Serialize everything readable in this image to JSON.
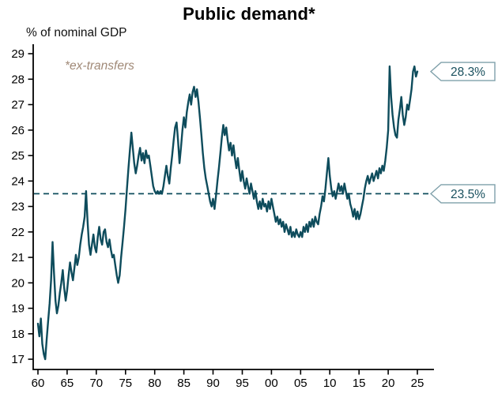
{
  "chart_data": {
    "type": "line",
    "title": "Public demand*",
    "ylabel": "% of nominal GDP",
    "annotation": "*ex-transfers",
    "line_color": "#0e4c5c",
    "annotation_color": "#a08977",
    "callout_border": "#7fa0aa",
    "callout_text": "#19505e",
    "axis_color": "#000000",
    "xlim": [
      1960,
      2025
    ],
    "ylim": [
      17,
      29
    ],
    "grid": false,
    "x_start": 1960,
    "x_step": 0.25,
    "x_ticks": [
      1960,
      1965,
      1970,
      1975,
      1980,
      1985,
      1990,
      1995,
      2000,
      2005,
      2010,
      2015,
      2020,
      2025
    ],
    "x_tick_labels": [
      "60",
      "65",
      "70",
      "75",
      "80",
      "85",
      "90",
      "95",
      "00",
      "05",
      "10",
      "15",
      "20",
      "25"
    ],
    "y_ticks": [
      17,
      18,
      19,
      20,
      21,
      22,
      23,
      24,
      25,
      26,
      27,
      28,
      29
    ],
    "dashed_line": {
      "value": 23.5,
      "label": "23.5%"
    },
    "end_label": {
      "value": 28.3,
      "label": "28.3%"
    },
    "values": [
      18.4,
      17.9,
      18.6,
      17.6,
      17.2,
      17.0,
      17.8,
      18.5,
      19.2,
      20.1,
      21.6,
      20.4,
      19.3,
      18.8,
      19.1,
      19.6,
      20.0,
      20.5,
      19.8,
      19.3,
      19.7,
      20.3,
      20.8,
      20.4,
      20.1,
      20.6,
      21.1,
      20.7,
      21.0,
      21.5,
      21.9,
      22.2,
      22.6,
      23.6,
      22.4,
      21.5,
      21.1,
      21.5,
      21.9,
      21.4,
      21.2,
      21.8,
      22.2,
      21.7,
      21.5,
      22.0,
      22.1,
      21.6,
      21.4,
      21.7,
      21.3,
      21.0,
      21.1,
      20.7,
      20.3,
      20.0,
      20.3,
      21.0,
      21.6,
      22.2,
      22.9,
      23.7,
      24.5,
      25.2,
      25.9,
      25.3,
      24.7,
      24.3,
      24.6,
      25.0,
      25.3,
      24.8,
      25.1,
      24.7,
      25.2,
      24.9,
      25.0,
      24.6,
      24.2,
      23.8,
      23.6,
      23.5,
      23.6,
      23.5,
      23.6,
      23.5,
      23.8,
      24.2,
      24.6,
      24.2,
      23.9,
      24.5,
      25.0,
      25.6,
      26.1,
      26.3,
      25.6,
      24.7,
      25.3,
      26.0,
      26.5,
      26.1,
      26.7,
      27.1,
      27.4,
      27.0,
      27.5,
      27.7,
      27.3,
      27.6,
      27.1,
      26.5,
      25.8,
      25.1,
      24.5,
      24.1,
      23.8,
      23.5,
      23.2,
      23.0,
      23.3,
      22.9,
      23.4,
      24.0,
      24.5,
      25.1,
      25.7,
      26.2,
      25.8,
      26.1,
      25.6,
      25.2,
      25.5,
      25.0,
      25.4,
      24.9,
      24.5,
      24.9,
      24.4,
      24.0,
      24.4,
      24.0,
      23.7,
      24.1,
      23.8,
      23.5,
      23.9,
      23.6,
      23.3,
      23.6,
      23.2,
      22.9,
      23.2,
      22.9,
      23.3,
      23.0,
      23.1,
      22.8,
      23.2,
      22.9,
      23.3,
      23.0,
      22.7,
      22.4,
      22.6,
      22.3,
      22.5,
      22.2,
      22.4,
      22.0,
      22.3,
      22.1,
      21.9,
      22.2,
      21.8,
      22.0,
      21.8,
      22.1,
      21.9,
      21.8,
      22.0,
      21.8,
      22.2,
      22.0,
      22.3,
      22.0,
      22.4,
      22.2,
      22.5,
      22.2,
      22.6,
      22.4,
      22.3,
      22.7,
      23.0,
      23.4,
      23.2,
      23.7,
      24.3,
      24.9,
      24.2,
      23.7,
      23.4,
      23.6,
      23.3,
      23.6,
      23.9,
      23.6,
      23.8,
      23.5,
      23.9,
      23.6,
      23.3,
      23.5,
      23.1,
      22.9,
      22.6,
      22.9,
      22.5,
      22.8,
      22.5,
      22.7,
      23.0,
      23.3,
      23.7,
      24.0,
      24.2,
      23.9,
      24.1,
      24.3,
      24.0,
      24.2,
      24.4,
      24.1,
      24.5,
      24.3,
      24.6,
      24.4,
      24.8,
      25.3,
      26.0,
      28.5,
      27.3,
      26.6,
      26.1,
      25.8,
      25.7,
      26.4,
      26.8,
      27.3,
      26.6,
      26.2,
      26.5,
      27.0,
      26.8,
      27.2,
      27.6,
      28.3,
      28.5,
      28.1,
      28.3
    ]
  }
}
